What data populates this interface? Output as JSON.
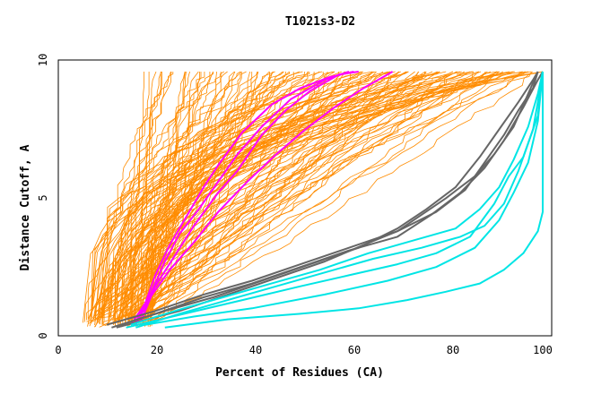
{
  "chart_data": {
    "type": "line",
    "title": "T1021s3-D2",
    "xlabel": "Percent of Residues (CA)",
    "ylabel": "Distance Cutoff, A",
    "xlim": [
      0,
      100
    ],
    "ylim": [
      0,
      10
    ],
    "xticks": [
      "0",
      "20",
      "40",
      "60",
      "80",
      "100"
    ],
    "yticks": [
      "0",
      "5",
      "10"
    ],
    "background_group": {
      "name": "other models",
      "color": "#ff8c00",
      "count": 140,
      "note": "dense bundle of thin curves, start x≈5-20 at y≈0.3, reach y≈9.5 between x≈17 and x≈100"
    },
    "series": [
      {
        "name": "magenta-1",
        "color": "#ff00ff",
        "points": [
          [
            15,
            0.4
          ],
          [
            18,
            1.2
          ],
          [
            20,
            2.2
          ],
          [
            23,
            3.3
          ],
          [
            27,
            4.5
          ],
          [
            30,
            5.4
          ],
          [
            33,
            6.2
          ],
          [
            38,
            7.4
          ],
          [
            44,
            8.4
          ],
          [
            50,
            9.0
          ],
          [
            56,
            9.4
          ],
          [
            61,
            9.6
          ]
        ]
      },
      {
        "name": "magenta-2",
        "color": "#ff00ff",
        "points": [
          [
            16,
            0.5
          ],
          [
            19,
            1.5
          ],
          [
            22,
            2.7
          ],
          [
            25,
            3.7
          ],
          [
            29,
            4.6
          ],
          [
            33,
            5.6
          ],
          [
            37,
            6.6
          ],
          [
            42,
            7.6
          ],
          [
            48,
            8.6
          ],
          [
            55,
            9.3
          ],
          [
            60,
            9.6
          ]
        ]
      },
      {
        "name": "magenta-3",
        "color": "#ff00ff",
        "points": [
          [
            17,
            0.5
          ],
          [
            20,
            1.8
          ],
          [
            24,
            2.9
          ],
          [
            28,
            4.0
          ],
          [
            33,
            5.2
          ],
          [
            37,
            6.0
          ],
          [
            42,
            7.3
          ],
          [
            47,
            8.2
          ],
          [
            52,
            8.9
          ],
          [
            58,
            9.5
          ],
          [
            62,
            9.6
          ]
        ]
      },
      {
        "name": "magenta-4",
        "color": "#ff00ff",
        "points": [
          [
            16,
            0.4
          ],
          [
            19,
            1.4
          ],
          [
            23,
            2.4
          ],
          [
            28,
            3.4
          ],
          [
            33,
            4.5
          ],
          [
            39,
            5.6
          ],
          [
            45,
            6.6
          ],
          [
            51,
            7.5
          ],
          [
            57,
            8.3
          ],
          [
            63,
            9.0
          ],
          [
            68,
            9.5
          ],
          [
            69,
            9.6
          ]
        ]
      },
      {
        "name": "gray-1",
        "color": "#666666",
        "points": [
          [
            10,
            0.4
          ],
          [
            20,
            0.9
          ],
          [
            30,
            1.5
          ],
          [
            40,
            2.0
          ],
          [
            50,
            2.6
          ],
          [
            60,
            3.2
          ],
          [
            70,
            3.8
          ],
          [
            78,
            4.5
          ],
          [
            84,
            5.3
          ],
          [
            88,
            6.3
          ],
          [
            92,
            7.3
          ],
          [
            95,
            8.2
          ],
          [
            98,
            9.0
          ],
          [
            99,
            9.6
          ]
        ]
      },
      {
        "name": "gray-2",
        "color": "#666666",
        "points": [
          [
            11,
            0.3
          ],
          [
            20,
            0.8
          ],
          [
            30,
            1.4
          ],
          [
            40,
            1.9
          ],
          [
            50,
            2.5
          ],
          [
            60,
            3.1
          ],
          [
            70,
            3.6
          ],
          [
            77,
            4.4
          ],
          [
            83,
            5.2
          ],
          [
            88,
            6.1
          ],
          [
            92,
            7.1
          ],
          [
            96,
            8.3
          ],
          [
            99,
            9.3
          ],
          [
            100,
            9.6
          ]
        ]
      },
      {
        "name": "gray-3",
        "color": "#666666",
        "points": [
          [
            13,
            0.4
          ],
          [
            22,
            0.9
          ],
          [
            32,
            1.4
          ],
          [
            42,
            2.0
          ],
          [
            52,
            2.6
          ],
          [
            62,
            3.2
          ],
          [
            70,
            3.9
          ],
          [
            76,
            4.6
          ],
          [
            82,
            5.4
          ],
          [
            87,
            6.5
          ],
          [
            91,
            7.5
          ],
          [
            95,
            8.5
          ],
          [
            98,
            9.3
          ],
          [
            99,
            9.6
          ]
        ]
      },
      {
        "name": "gray-4",
        "color": "#666666",
        "points": [
          [
            12,
            0.3
          ],
          [
            25,
            0.9
          ],
          [
            35,
            1.5
          ],
          [
            45,
            2.1
          ],
          [
            55,
            2.7
          ],
          [
            63,
            3.3
          ],
          [
            70,
            3.8
          ],
          [
            75,
            4.4
          ],
          [
            80,
            5.0
          ],
          [
            86,
            5.8
          ],
          [
            90,
            6.6
          ],
          [
            94,
            7.6
          ],
          [
            97,
            8.8
          ],
          [
            99,
            9.6
          ]
        ]
      },
      {
        "name": "cyan-1",
        "color": "#00e5e5",
        "points": [
          [
            22,
            0.3
          ],
          [
            35,
            0.6
          ],
          [
            50,
            0.8
          ],
          [
            62,
            1.0
          ],
          [
            72,
            1.3
          ],
          [
            80,
            1.6
          ],
          [
            87,
            1.9
          ],
          [
            92,
            2.4
          ],
          [
            96,
            3.0
          ],
          [
            99,
            3.8
          ],
          [
            100,
            4.5
          ],
          [
            100,
            9.6
          ]
        ]
      },
      {
        "name": "cyan-2",
        "color": "#00e5e5",
        "points": [
          [
            16,
            0.3
          ],
          [
            25,
            0.8
          ],
          [
            35,
            1.3
          ],
          [
            45,
            1.8
          ],
          [
            55,
            2.3
          ],
          [
            65,
            2.8
          ],
          [
            75,
            3.2
          ],
          [
            83,
            3.6
          ],
          [
            88,
            4.0
          ],
          [
            92,
            4.8
          ],
          [
            95,
            6.0
          ],
          [
            98,
            7.5
          ],
          [
            99,
            8.5
          ],
          [
            100,
            9.6
          ]
        ]
      },
      {
        "name": "cyan-3",
        "color": "#00e5e5",
        "points": [
          [
            15,
            0.4
          ],
          [
            24,
            0.9
          ],
          [
            34,
            1.4
          ],
          [
            44,
            1.9
          ],
          [
            54,
            2.4
          ],
          [
            64,
            3.0
          ],
          [
            74,
            3.5
          ],
          [
            82,
            3.9
          ],
          [
            87,
            4.6
          ],
          [
            91,
            5.4
          ],
          [
            94,
            6.4
          ],
          [
            97,
            7.6
          ],
          [
            99,
            8.8
          ],
          [
            100,
            9.6
          ]
        ]
      },
      {
        "name": "cyan-4",
        "color": "#00e5e5",
        "points": [
          [
            14,
            0.3
          ],
          [
            26,
            0.8
          ],
          [
            38,
            1.3
          ],
          [
            50,
            1.8
          ],
          [
            60,
            2.2
          ],
          [
            70,
            2.6
          ],
          [
            78,
            3.0
          ],
          [
            85,
            3.6
          ],
          [
            90,
            4.8
          ],
          [
            93,
            5.8
          ],
          [
            96,
            6.5
          ],
          [
            99,
            8.0
          ],
          [
            100,
            9.6
          ]
        ]
      },
      {
        "name": "cyan-5",
        "color": "#00e5e5",
        "points": [
          [
            18,
            0.4
          ],
          [
            28,
            0.7
          ],
          [
            40,
            1.0
          ],
          [
            55,
            1.5
          ],
          [
            68,
            2.0
          ],
          [
            78,
            2.5
          ],
          [
            86,
            3.2
          ],
          [
            91,
            4.2
          ],
          [
            94,
            5.2
          ],
          [
            97,
            6.3
          ],
          [
            99,
            7.8
          ],
          [
            100,
            9.6
          ]
        ]
      }
    ]
  }
}
